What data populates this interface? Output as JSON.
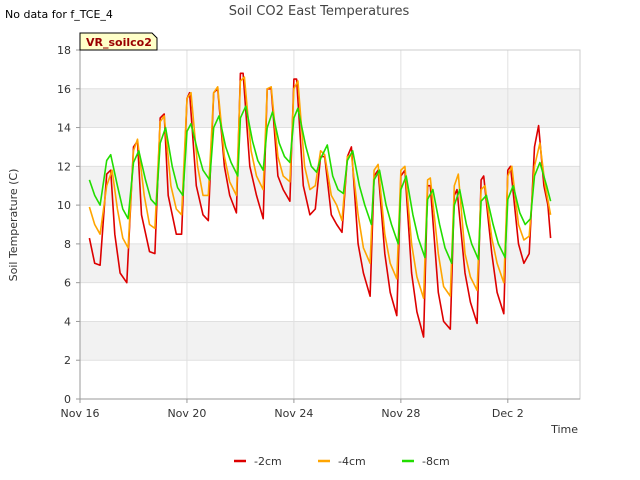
{
  "no_data_note": "No data for f_TCE_4",
  "badge": "VR_soilco2",
  "colors": {
    "-2cm": "#dd0000",
    "-4cm": "#ffa500",
    "-8cm": "#22dd00"
  },
  "chart_data": {
    "type": "line",
    "title": "Soil CO2 East Temperatures",
    "xlabel": "Time",
    "ylabel": "Soil Temperature (C)",
    "xlim": [
      0,
      18.7
    ],
    "ylim": [
      0,
      18
    ],
    "x_ticks": [
      {
        "x": 0,
        "label": "Nov 16"
      },
      {
        "x": 4,
        "label": "Nov 20"
      },
      {
        "x": 8,
        "label": "Nov 24"
      },
      {
        "x": 12,
        "label": "Nov 28"
      },
      {
        "x": 16,
        "label": "Dec 2"
      }
    ],
    "y_ticks": [
      0,
      2,
      4,
      6,
      8,
      10,
      12,
      14,
      16,
      18
    ],
    "grid": true,
    "legend_position": "bottom",
    "series": [
      {
        "name": "-2cm",
        "points": [
          [
            0.35,
            8.3
          ],
          [
            0.55,
            7.0
          ],
          [
            0.75,
            6.9
          ],
          [
            1.0,
            11.6
          ],
          [
            1.15,
            11.8
          ],
          [
            1.3,
            8.5
          ],
          [
            1.5,
            6.5
          ],
          [
            1.75,
            6.0
          ],
          [
            2.0,
            13.0
          ],
          [
            2.15,
            13.3
          ],
          [
            2.3,
            9.5
          ],
          [
            2.6,
            7.6
          ],
          [
            2.8,
            7.5
          ],
          [
            3.0,
            14.5
          ],
          [
            3.15,
            14.7
          ],
          [
            3.3,
            10.5
          ],
          [
            3.6,
            8.5
          ],
          [
            3.8,
            8.5
          ],
          [
            4.0,
            15.5
          ],
          [
            4.1,
            15.8
          ],
          [
            4.35,
            11.0
          ],
          [
            4.6,
            9.5
          ],
          [
            4.8,
            9.2
          ],
          [
            5.0,
            15.8
          ],
          [
            5.15,
            16.0
          ],
          [
            5.4,
            12.0
          ],
          [
            5.6,
            10.5
          ],
          [
            5.85,
            9.6
          ],
          [
            6.0,
            16.8
          ],
          [
            6.1,
            16.8
          ],
          [
            6.35,
            12.0
          ],
          [
            6.6,
            10.5
          ],
          [
            6.85,
            9.3
          ],
          [
            7.0,
            16.0
          ],
          [
            7.15,
            16.0
          ],
          [
            7.4,
            11.5
          ],
          [
            7.6,
            10.8
          ],
          [
            7.85,
            10.2
          ],
          [
            8.0,
            16.5
          ],
          [
            8.1,
            16.5
          ],
          [
            8.35,
            11.0
          ],
          [
            8.6,
            9.5
          ],
          [
            8.8,
            9.8
          ],
          [
            9.0,
            12.5
          ],
          [
            9.15,
            12.5
          ],
          [
            9.4,
            9.5
          ],
          [
            9.6,
            9.0
          ],
          [
            9.8,
            8.6
          ],
          [
            10.0,
            12.5
          ],
          [
            10.15,
            13.0
          ],
          [
            10.4,
            8.0
          ],
          [
            10.6,
            6.5
          ],
          [
            10.85,
            5.3
          ],
          [
            11.0,
            11.5
          ],
          [
            11.15,
            11.8
          ],
          [
            11.4,
            7.5
          ],
          [
            11.6,
            5.5
          ],
          [
            11.85,
            4.3
          ],
          [
            12.0,
            11.5
          ],
          [
            12.15,
            11.8
          ],
          [
            12.4,
            6.5
          ],
          [
            12.6,
            4.5
          ],
          [
            12.85,
            3.2
          ],
          [
            13.0,
            11.0
          ],
          [
            13.1,
            11.0
          ],
          [
            13.4,
            5.5
          ],
          [
            13.6,
            4.0
          ],
          [
            13.85,
            3.6
          ],
          [
            14.0,
            10.5
          ],
          [
            14.1,
            10.8
          ],
          [
            14.4,
            6.5
          ],
          [
            14.6,
            5.0
          ],
          [
            14.85,
            3.9
          ],
          [
            15.0,
            11.3
          ],
          [
            15.1,
            11.5
          ],
          [
            15.4,
            7.5
          ],
          [
            15.6,
            5.5
          ],
          [
            15.85,
            4.4
          ],
          [
            16.0,
            11.8
          ],
          [
            16.1,
            12.0
          ],
          [
            16.4,
            8.0
          ],
          [
            16.6,
            7.0
          ],
          [
            16.8,
            7.5
          ],
          [
            17.0,
            13.0
          ],
          [
            17.15,
            14.1
          ],
          [
            17.35,
            11.0
          ],
          [
            17.5,
            10.0
          ],
          [
            17.6,
            8.3
          ]
        ]
      },
      {
        "name": "-4cm",
        "points": [
          [
            0.35,
            9.9
          ],
          [
            0.55,
            9.0
          ],
          [
            0.75,
            8.5
          ],
          [
            1.0,
            11.0
          ],
          [
            1.2,
            11.8
          ],
          [
            1.4,
            9.8
          ],
          [
            1.6,
            8.3
          ],
          [
            1.8,
            7.8
          ],
          [
            2.0,
            12.8
          ],
          [
            2.15,
            13.4
          ],
          [
            2.4,
            10.5
          ],
          [
            2.6,
            9.0
          ],
          [
            2.8,
            8.8
          ],
          [
            3.0,
            14.3
          ],
          [
            3.15,
            14.6
          ],
          [
            3.4,
            11.0
          ],
          [
            3.6,
            9.8
          ],
          [
            3.8,
            9.5
          ],
          [
            4.0,
            15.5
          ],
          [
            4.15,
            15.8
          ],
          [
            4.4,
            12.0
          ],
          [
            4.6,
            10.5
          ],
          [
            4.8,
            10.5
          ],
          [
            5.0,
            15.8
          ],
          [
            5.15,
            16.1
          ],
          [
            5.4,
            12.5
          ],
          [
            5.6,
            11.2
          ],
          [
            5.85,
            10.5
          ],
          [
            6.0,
            16.4
          ],
          [
            6.15,
            16.6
          ],
          [
            6.4,
            12.8
          ],
          [
            6.6,
            11.5
          ],
          [
            6.85,
            10.8
          ],
          [
            7.0,
            16.0
          ],
          [
            7.15,
            16.1
          ],
          [
            7.4,
            12.5
          ],
          [
            7.6,
            11.5
          ],
          [
            7.85,
            11.2
          ],
          [
            8.0,
            16.0
          ],
          [
            8.15,
            16.4
          ],
          [
            8.4,
            12.0
          ],
          [
            8.6,
            10.8
          ],
          [
            8.8,
            11.0
          ],
          [
            9.0,
            12.8
          ],
          [
            9.15,
            12.6
          ],
          [
            9.4,
            10.5
          ],
          [
            9.6,
            10.0
          ],
          [
            9.8,
            9.2
          ],
          [
            10.0,
            12.5
          ],
          [
            10.15,
            12.6
          ],
          [
            10.4,
            9.5
          ],
          [
            10.6,
            7.8
          ],
          [
            10.85,
            7.0
          ],
          [
            11.0,
            11.8
          ],
          [
            11.15,
            12.1
          ],
          [
            11.4,
            8.5
          ],
          [
            11.6,
            7.0
          ],
          [
            11.85,
            6.2
          ],
          [
            12.0,
            11.8
          ],
          [
            12.15,
            12.0
          ],
          [
            12.4,
            8.0
          ],
          [
            12.6,
            6.3
          ],
          [
            12.85,
            5.2
          ],
          [
            13.0,
            11.3
          ],
          [
            13.1,
            11.4
          ],
          [
            13.4,
            7.5
          ],
          [
            13.6,
            5.8
          ],
          [
            13.85,
            5.3
          ],
          [
            14.0,
            11.0
          ],
          [
            14.15,
            11.6
          ],
          [
            14.4,
            7.5
          ],
          [
            14.6,
            6.3
          ],
          [
            14.85,
            5.6
          ],
          [
            15.0,
            10.8
          ],
          [
            15.15,
            11.0
          ],
          [
            15.4,
            8.3
          ],
          [
            15.6,
            7.0
          ],
          [
            15.85,
            6.0
          ],
          [
            16.0,
            11.5
          ],
          [
            16.15,
            12.0
          ],
          [
            16.4,
            9.0
          ],
          [
            16.6,
            8.2
          ],
          [
            16.8,
            8.4
          ],
          [
            17.0,
            12.0
          ],
          [
            17.2,
            13.2
          ],
          [
            17.4,
            11.0
          ],
          [
            17.6,
            9.5
          ]
        ]
      },
      {
        "name": "-8cm",
        "points": [
          [
            0.35,
            11.3
          ],
          [
            0.55,
            10.5
          ],
          [
            0.75,
            10.0
          ],
          [
            1.0,
            12.3
          ],
          [
            1.15,
            12.6
          ],
          [
            1.4,
            11.0
          ],
          [
            1.6,
            9.8
          ],
          [
            1.8,
            9.3
          ],
          [
            2.0,
            12.2
          ],
          [
            2.2,
            12.8
          ],
          [
            2.45,
            11.3
          ],
          [
            2.65,
            10.3
          ],
          [
            2.85,
            10.0
          ],
          [
            3.0,
            13.2
          ],
          [
            3.2,
            14.0
          ],
          [
            3.45,
            12.0
          ],
          [
            3.65,
            10.9
          ],
          [
            3.85,
            10.5
          ],
          [
            4.0,
            13.8
          ],
          [
            4.15,
            14.2
          ],
          [
            4.4,
            12.8
          ],
          [
            4.6,
            11.8
          ],
          [
            4.85,
            11.3
          ],
          [
            5.0,
            14.0
          ],
          [
            5.2,
            14.6
          ],
          [
            5.45,
            13.0
          ],
          [
            5.65,
            12.2
          ],
          [
            5.9,
            11.5
          ],
          [
            6.0,
            14.5
          ],
          [
            6.2,
            15.1
          ],
          [
            6.45,
            13.3
          ],
          [
            6.65,
            12.3
          ],
          [
            6.85,
            11.8
          ],
          [
            7.0,
            14.0
          ],
          [
            7.2,
            14.8
          ],
          [
            7.45,
            13.2
          ],
          [
            7.65,
            12.5
          ],
          [
            7.85,
            12.2
          ],
          [
            8.0,
            14.5
          ],
          [
            8.15,
            15.0
          ],
          [
            8.45,
            13.0
          ],
          [
            8.65,
            12.0
          ],
          [
            8.85,
            11.7
          ],
          [
            9.0,
            12.4
          ],
          [
            9.25,
            13.1
          ],
          [
            9.45,
            11.5
          ],
          [
            9.65,
            10.8
          ],
          [
            9.85,
            10.6
          ],
          [
            10.0,
            12.3
          ],
          [
            10.2,
            12.8
          ],
          [
            10.45,
            11.0
          ],
          [
            10.65,
            10.0
          ],
          [
            10.9,
            9.0
          ],
          [
            11.0,
            11.3
          ],
          [
            11.2,
            11.8
          ],
          [
            11.45,
            10.0
          ],
          [
            11.65,
            9.0
          ],
          [
            11.9,
            8.0
          ],
          [
            12.0,
            10.8
          ],
          [
            12.2,
            11.5
          ],
          [
            12.45,
            9.5
          ],
          [
            12.65,
            8.3
          ],
          [
            12.9,
            7.3
          ],
          [
            13.0,
            10.3
          ],
          [
            13.2,
            10.8
          ],
          [
            13.45,
            9.0
          ],
          [
            13.65,
            7.8
          ],
          [
            13.9,
            7.0
          ],
          [
            14.0,
            10.0
          ],
          [
            14.2,
            10.8
          ],
          [
            14.45,
            9.0
          ],
          [
            14.65,
            8.0
          ],
          [
            14.9,
            7.2
          ],
          [
            15.0,
            10.2
          ],
          [
            15.2,
            10.5
          ],
          [
            15.45,
            9.0
          ],
          [
            15.65,
            8.0
          ],
          [
            15.9,
            7.3
          ],
          [
            16.0,
            10.3
          ],
          [
            16.2,
            11.0
          ],
          [
            16.45,
            9.6
          ],
          [
            16.65,
            9.0
          ],
          [
            16.85,
            9.3
          ],
          [
            17.0,
            11.5
          ],
          [
            17.2,
            12.2
          ],
          [
            17.45,
            11.0
          ],
          [
            17.6,
            10.2
          ]
        ]
      }
    ]
  }
}
